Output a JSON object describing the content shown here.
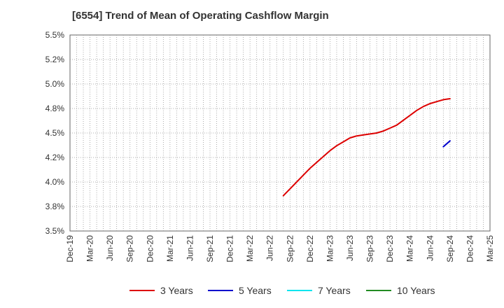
{
  "chart_data": {
    "type": "line",
    "title": "[6554]  Trend of Mean of Operating Cashflow Margin",
    "xlabel": "",
    "ylabel": "",
    "ylim": [
      3.5,
      5.5
    ],
    "y_ticks": [
      "3.5%",
      "3.8%",
      "4.0%",
      "4.2%",
      "4.5%",
      "4.8%",
      "5.0%",
      "5.2%",
      "5.5%"
    ],
    "x_ticks": [
      "Dec-19",
      "Mar-20",
      "Jun-20",
      "Sep-20",
      "Dec-20",
      "Mar-21",
      "Jun-21",
      "Sep-21",
      "Dec-21",
      "Mar-22",
      "Jun-22",
      "Sep-22",
      "Dec-22",
      "Mar-23",
      "Jun-23",
      "Sep-23",
      "Dec-23",
      "Mar-24",
      "Jun-24",
      "Sep-24",
      "Dec-24",
      "Mar-25"
    ],
    "x_range": [
      "2019-12",
      "2025-03"
    ],
    "grid": true,
    "legend_position": "bottom",
    "series": [
      {
        "name": "3 Years",
        "color": "#dd0000",
        "points": [
          [
            "2022-08",
            3.86
          ],
          [
            "2022-09",
            3.93
          ],
          [
            "2022-10",
            4.0
          ],
          [
            "2022-11",
            4.07
          ],
          [
            "2022-12",
            4.14
          ],
          [
            "2023-01",
            4.2
          ],
          [
            "2023-02",
            4.26
          ],
          [
            "2023-03",
            4.32
          ],
          [
            "2023-04",
            4.37
          ],
          [
            "2023-05",
            4.41
          ],
          [
            "2023-06",
            4.45
          ],
          [
            "2023-07",
            4.47
          ],
          [
            "2023-08",
            4.48
          ],
          [
            "2023-09",
            4.49
          ],
          [
            "2023-10",
            4.5
          ],
          [
            "2023-11",
            4.52
          ],
          [
            "2023-12",
            4.55
          ],
          [
            "2024-01",
            4.58
          ],
          [
            "2024-02",
            4.63
          ],
          [
            "2024-03",
            4.68
          ],
          [
            "2024-04",
            4.73
          ],
          [
            "2024-05",
            4.77
          ],
          [
            "2024-06",
            4.8
          ],
          [
            "2024-07",
            4.82
          ],
          [
            "2024-08",
            4.84
          ],
          [
            "2024-09",
            4.85
          ]
        ]
      },
      {
        "name": "5 Years",
        "color": "#0000cc",
        "points": [
          [
            "2024-08",
            4.36
          ],
          [
            "2024-09",
            4.42
          ]
        ]
      },
      {
        "name": "7 Years",
        "color": "#00e5ee",
        "points": []
      },
      {
        "name": "10 Years",
        "color": "#228b22",
        "points": []
      }
    ]
  }
}
